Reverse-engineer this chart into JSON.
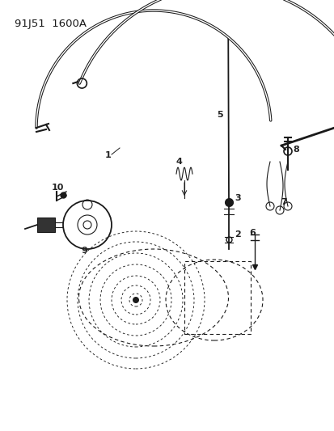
{
  "title": "91J51  1600A",
  "bg_color": "#ffffff",
  "line_color": "#1a1a1a",
  "label_color": "#222222",
  "figsize": [
    4.14,
    5.33
  ],
  "dpi": 100
}
